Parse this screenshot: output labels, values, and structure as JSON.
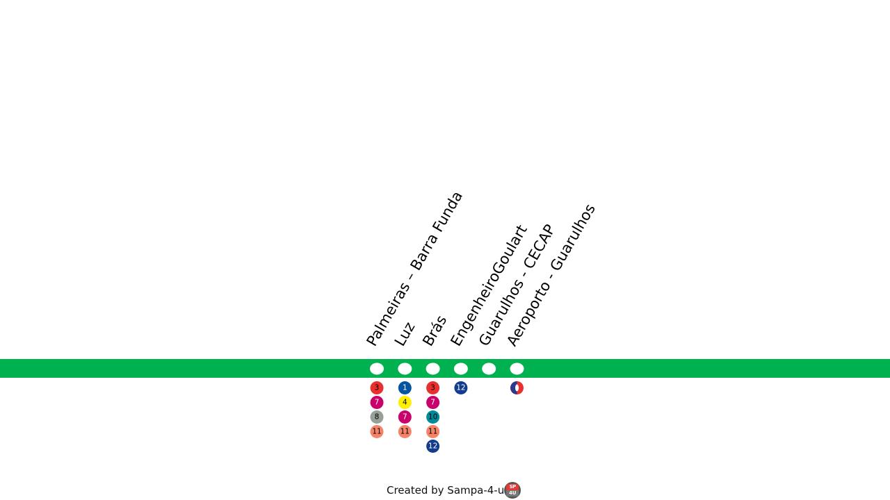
{
  "line": {
    "color": "#00b14f",
    "station_color": "#ffffff"
  },
  "stations": [
    {
      "name": "Palmeiras – Barra Funda",
      "connections": [
        {
          "label": "3",
          "color": "#e8312f",
          "text_color": "#000000"
        },
        {
          "label": "7",
          "color": "#ca016b",
          "text_color": "#ffffff"
        },
        {
          "label": "8",
          "color": "#97a098",
          "text_color": "#000000"
        },
        {
          "label": "11",
          "color": "#f68368",
          "text_color": "#000000"
        }
      ]
    },
    {
      "name": "Luz",
      "connections": [
        {
          "label": "1",
          "color": "#0455a1",
          "text_color": "#ffffff"
        },
        {
          "label": "4",
          "color": "#fff000",
          "text_color": "#000000"
        },
        {
          "label": "7",
          "color": "#ca016b",
          "text_color": "#ffffff"
        },
        {
          "label": "11",
          "color": "#f68368",
          "text_color": "#000000"
        }
      ]
    },
    {
      "name": "Brás",
      "connections": [
        {
          "label": "3",
          "color": "#e8312f",
          "text_color": "#000000"
        },
        {
          "label": "7",
          "color": "#ca016b",
          "text_color": "#ffffff"
        },
        {
          "label": "10",
          "color": "#008b9c",
          "text_color": "#000000"
        },
        {
          "label": "11",
          "color": "#f68368",
          "text_color": "#000000"
        },
        {
          "label": "12",
          "color": "#133c8d",
          "text_color": "#ffffff"
        }
      ]
    },
    {
      "name": "EngenheiroGoulart",
      "connections": [
        {
          "label": "12",
          "color": "#133c8d",
          "text_color": "#ffffff"
        }
      ]
    },
    {
      "name": "Guarulhos - CECAP",
      "connections": []
    },
    {
      "name": "Aeroporto - Guarulhos",
      "connections": [
        {
          "label": "",
          "icon": "airport-icon",
          "color": "#e8312f",
          "text_color": "#ffffff"
        }
      ]
    }
  ],
  "footer": {
    "text": "Created by Sampa-4-u",
    "logo_icon": "sampa-4-u-logo",
    "logo_top": "SP",
    "logo_bottom": "4U"
  }
}
